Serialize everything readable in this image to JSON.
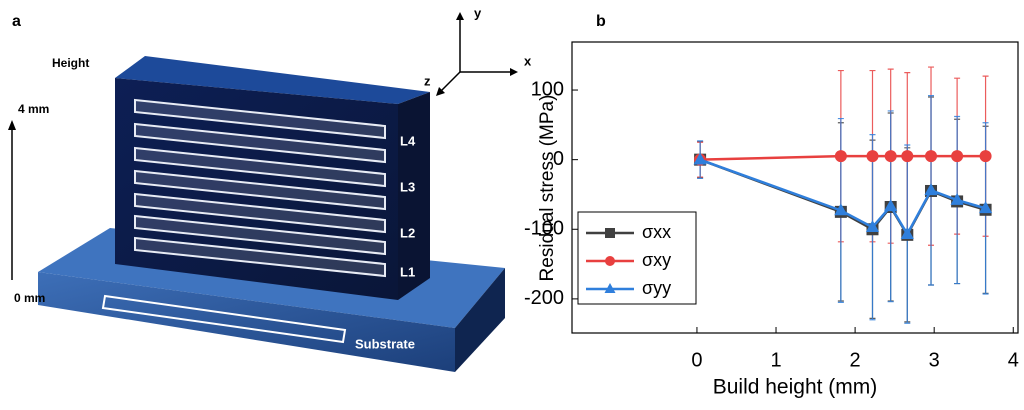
{
  "panel_a": {
    "label": "a",
    "height_label": "Height",
    "top_mark": "4 mm",
    "bottom_mark": "0 mm",
    "layers": [
      "L4",
      "L3",
      "L2",
      "L1"
    ],
    "substrate": "Substrate",
    "axes": [
      "x",
      "y",
      "z"
    ]
  },
  "chart_data": {
    "type": "line",
    "panel_label": "b",
    "x_label": "Build height (mm)",
    "y_label": "Residual stress (MPa)",
    "x": [
      0.04,
      1.82,
      2.22,
      2.45,
      2.66,
      2.96,
      3.29,
      3.65
    ],
    "series": [
      {
        "name": "σxx",
        "color": "#404040",
        "marker": "square",
        "values": [
          0,
          -75,
          -100,
          -68,
          -108,
          -45,
          -60,
          -72
        ],
        "errors": [
          26,
          128,
          128,
          135,
          125,
          135,
          118,
          120
        ]
      },
      {
        "name": "σxy",
        "color": "#e8403f",
        "marker": "circle",
        "values": [
          0,
          5,
          5,
          5,
          5,
          5,
          5,
          5
        ],
        "errors": [
          25,
          123,
          123,
          125,
          120,
          128,
          112,
          115
        ]
      },
      {
        "name": "σyy",
        "color": "#2f7fdc",
        "marker": "triangle",
        "values": [
          0,
          -73,
          -97,
          -67,
          -107,
          -44,
          -58,
          -70
        ],
        "errors": [
          27,
          132,
          133,
          137,
          128,
          136,
          120,
          123
        ]
      }
    ],
    "xlim": [
      -1.58,
      4.06
    ],
    "ylim": [
      -249,
      169
    ],
    "xticks": [
      0,
      1,
      2,
      3,
      4
    ],
    "yticks": [
      -200,
      -100,
      0,
      100
    ]
  }
}
